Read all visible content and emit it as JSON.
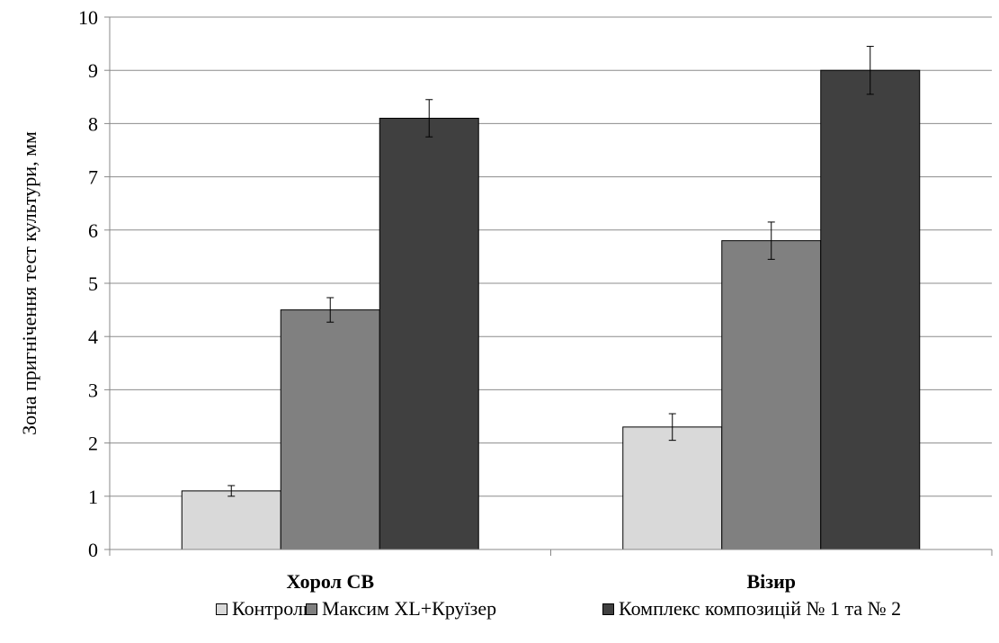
{
  "chart_data": {
    "type": "bar",
    "categories": [
      "Хорол СВ",
      "Візир"
    ],
    "series": [
      {
        "name": "Контроль",
        "values": [
          1.1,
          2.3
        ],
        "errors": [
          0.1,
          0.25
        ],
        "color": "#d9d9d9"
      },
      {
        "name": "Максим XL+Круїзер",
        "values": [
          4.5,
          5.8
        ],
        "errors": [
          0.23,
          0.35
        ],
        "color": "#808080"
      },
      {
        "name": "Комплекс композицій № 1 та № 2",
        "values": [
          8.1,
          9.0
        ],
        "errors": [
          0.35,
          0.45
        ],
        "color": "#404040"
      }
    ],
    "ylabel": "Зона пригнічення тест культури, мм",
    "xlabel": "",
    "ylim": [
      0,
      10
    ],
    "yticks": [
      "0",
      "1",
      "2",
      "3",
      "4",
      "5",
      "6",
      "7",
      "8",
      "9",
      "10"
    ],
    "grid": true,
    "legend_position": "bottom"
  }
}
